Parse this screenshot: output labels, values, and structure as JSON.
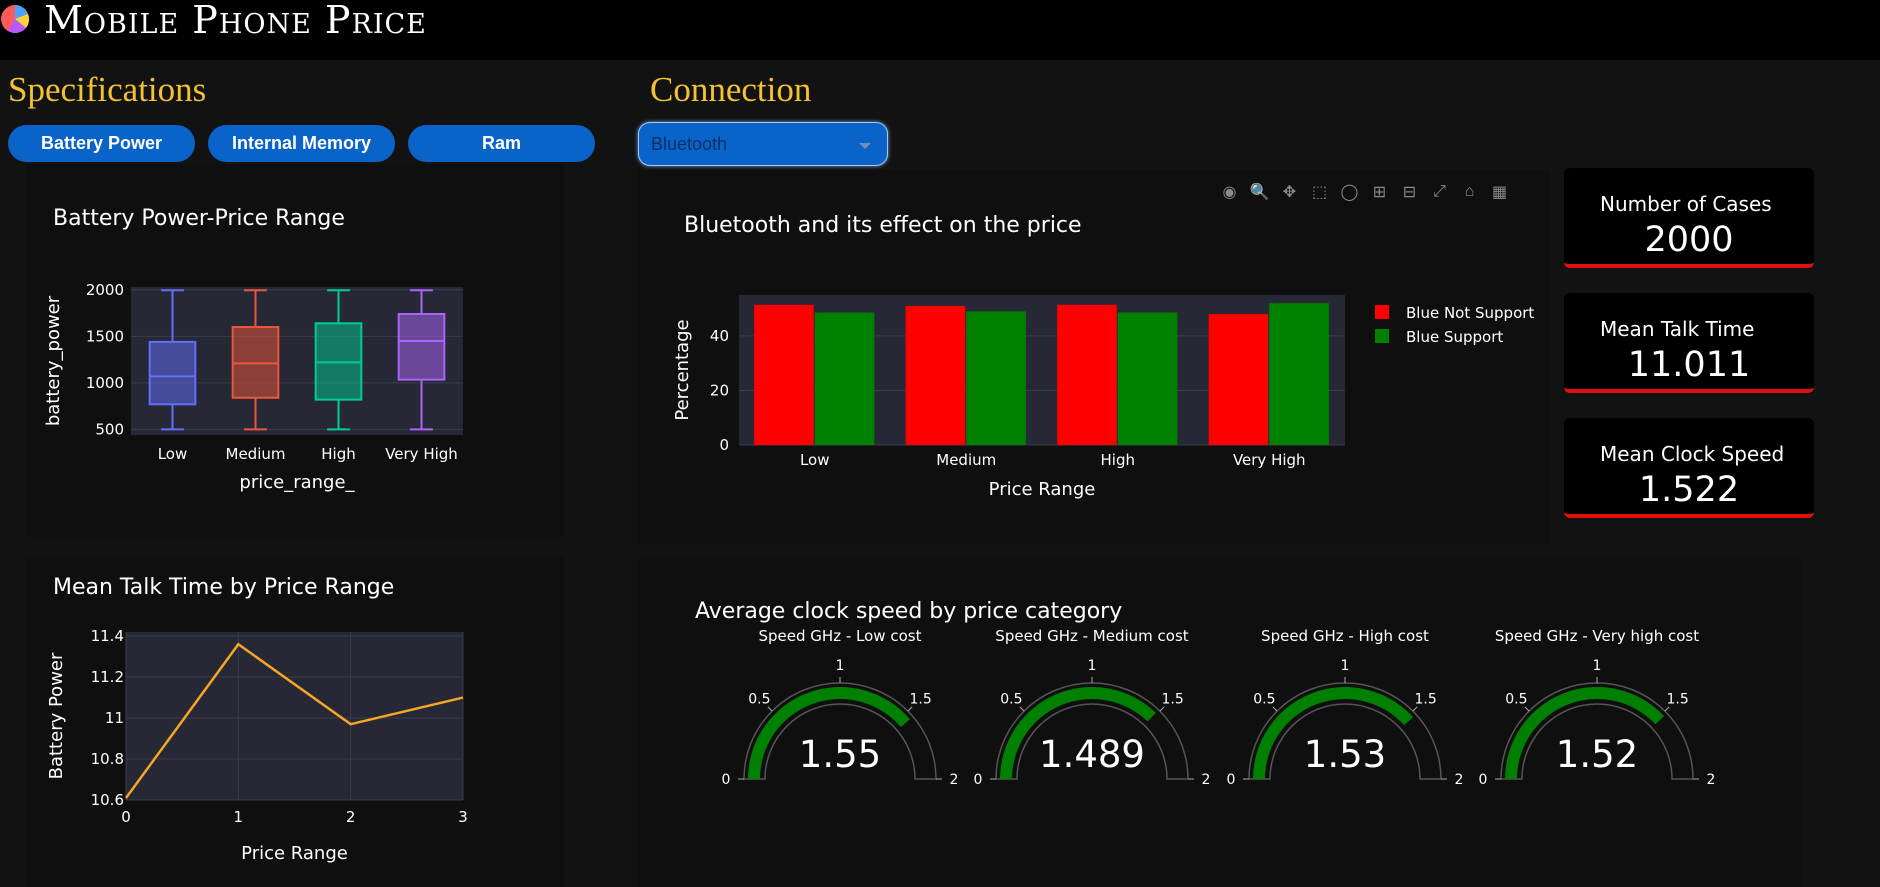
{
  "header": {
    "title": "Mobile Phone Price",
    "logo_icon": "pie-chart-icon"
  },
  "sections": {
    "specifications": "Specifications",
    "connection": "Connection"
  },
  "spec_buttons": [
    {
      "label": "Battery Power"
    },
    {
      "label": "Internal Memory"
    },
    {
      "label": "Ram"
    }
  ],
  "connection_dropdown": {
    "selected": "Bluetooth"
  },
  "kpis": [
    {
      "label": "Number of Cases",
      "value": "2000"
    },
    {
      "label": "Mean Talk Time",
      "value": "11.011"
    },
    {
      "label": "Mean Clock Speed",
      "value": "1.522"
    }
  ],
  "modebar_icons": [
    "camera-icon",
    "zoom-icon",
    "pan-icon",
    "box-select-icon",
    "lasso-icon",
    "zoom-in-icon",
    "zoom-out-icon",
    "autoscale-icon",
    "reset-axes-icon",
    "plotly-logo-icon"
  ],
  "chart_data": [
    {
      "type": "box",
      "title": "Battery Power-Price Range",
      "xlabel": "price_range_",
      "ylabel": "battery_power",
      "categories": [
        "Low",
        "Medium",
        "High",
        "Very High"
      ],
      "ylim": [
        440,
        2030
      ],
      "yticks": [
        500,
        1000,
        1500,
        2000
      ],
      "ytick_labels": [
        "500",
        "1000",
        "1500",
        "2000"
      ],
      "colors": [
        "#636efa",
        "#ef553b",
        "#00cc96",
        "#ab63fa"
      ],
      "boxes": [
        {
          "min": 500,
          "q1": 770,
          "median": 1070,
          "q3": 1440,
          "max": 1995
        },
        {
          "min": 500,
          "q1": 840,
          "median": 1210,
          "q3": 1600,
          "max": 1995
        },
        {
          "min": 500,
          "q1": 820,
          "median": 1220,
          "q3": 1640,
          "max": 1995
        },
        {
          "min": 500,
          "q1": 1035,
          "median": 1450,
          "q3": 1740,
          "max": 1995
        }
      ]
    },
    {
      "type": "bar",
      "title": "Bluetooth and its effect on the price",
      "xlabel": "Price Range",
      "ylabel": "Percentage",
      "categories": [
        "Low",
        "Medium",
        "High",
        "Very High"
      ],
      "ylim": [
        0,
        55
      ],
      "yticks": [
        0,
        20,
        40
      ],
      "ytick_labels": [
        "0",
        "20",
        "40"
      ],
      "legend_position": "right",
      "series": [
        {
          "name": "Blue Not Support",
          "color": "#ff0000",
          "values": [
            51.4,
            51.0,
            51.4,
            48.0
          ]
        },
        {
          "name": "Blue Support",
          "color": "#008000",
          "values": [
            48.6,
            49.0,
            48.6,
            52.0
          ]
        }
      ]
    },
    {
      "type": "line",
      "title": "Mean Talk Time by Price Range",
      "xlabel": "Price Range",
      "ylabel": "Battery Power",
      "x": [
        0,
        1,
        2,
        3
      ],
      "xticks": [
        0,
        1,
        2,
        3
      ],
      "xtick_labels": [
        "0",
        "1",
        "2",
        "3"
      ],
      "y": [
        10.61,
        11.36,
        10.97,
        11.1
      ],
      "xlim": [
        0,
        3
      ],
      "ylim": [
        10.6,
        11.42
      ],
      "yticks": [
        10.6,
        10.8,
        11.0,
        11.2,
        11.4
      ],
      "ytick_labels": [
        "10.6",
        "10.8",
        "11",
        "11.2",
        "11.4"
      ],
      "color": "#f5a623"
    },
    {
      "type": "gauge",
      "title": "Average clock speed by price category",
      "range": [
        0,
        2
      ],
      "tick_values": [
        0,
        0.5,
        1,
        1.5,
        2
      ],
      "tick_labels": [
        "0",
        "0.5",
        "1",
        "1.5",
        "2"
      ],
      "bar_color": "#008000",
      "gauges": [
        {
          "label": "Speed GHz - Low cost",
          "value": 1.55,
          "display": "1.55"
        },
        {
          "label": "Speed GHz - Medium cost",
          "value": 1.489,
          "display": "1.489"
        },
        {
          "label": "Speed GHz - High cost",
          "value": 1.53,
          "display": "1.53"
        },
        {
          "label": "Speed GHz - Very high cost",
          "value": 1.52,
          "display": "1.52"
        }
      ]
    }
  ]
}
